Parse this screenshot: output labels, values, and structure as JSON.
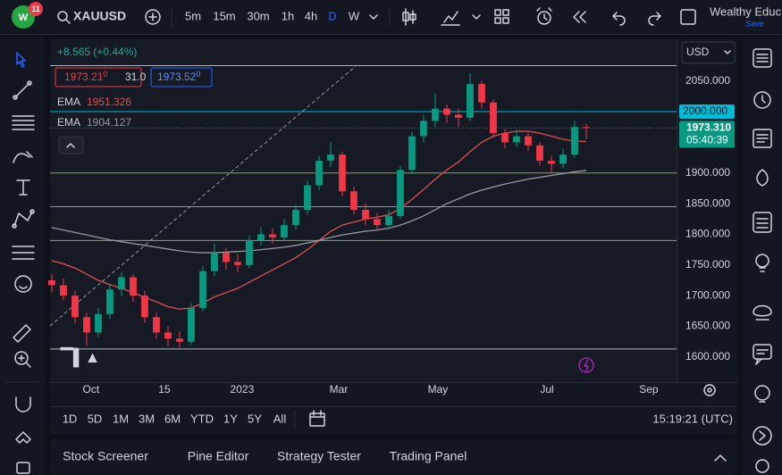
{
  "top_bar": {
    "notifications": "11",
    "symbol": "XAUUSD",
    "intervals": [
      "5m",
      "15m",
      "30m",
      "1h",
      "4h",
      "D",
      "W"
    ],
    "account": "Wealthy Educ",
    "save": "Save"
  },
  "legend": {
    "change": "+8.565 (+0.44%)",
    "bid": "1973.21",
    "bid_sup": "0",
    "spread": "31.0",
    "ask": "1973.52",
    "ask_sup": "0"
  },
  "currency": "USD",
  "chart_data": {
    "type": "candlestick",
    "up_color": "#089981",
    "down_color": "#f23645",
    "ylim": [
      1559,
      2118
    ],
    "yticks": [
      {
        "value": 2050,
        "label": "2050.000"
      },
      {
        "value": 2000,
        "label": "2000.000"
      },
      {
        "value": 1950,
        "label": "1950.000"
      },
      {
        "value": 1900,
        "label": "1900.000"
      },
      {
        "value": 1850,
        "label": "1850.000"
      },
      {
        "value": 1800,
        "label": "1800.000"
      },
      {
        "value": 1750,
        "label": "1750.000"
      },
      {
        "value": 1700,
        "label": "1700.000"
      },
      {
        "value": 1650,
        "label": "1650.000"
      },
      {
        "value": 1600,
        "label": "1600.000"
      }
    ],
    "xlim": [
      -0.15,
      53.77
    ],
    "xticks": [
      {
        "value": 3.38,
        "label": "Oct"
      },
      {
        "value": 9.69,
        "label": "15"
      },
      {
        "value": 16.38,
        "label": "2023"
      },
      {
        "value": 24.69,
        "label": "Mar"
      },
      {
        "value": 33.23,
        "label": "May"
      },
      {
        "value": 42.62,
        "label": "Jul"
      },
      {
        "value": 51.38,
        "label": "Sep"
      }
    ],
    "grid": true,
    "ohlc": [
      [
        1725,
        1735,
        1705,
        1717
      ],
      [
        1717,
        1728,
        1692,
        1700
      ],
      [
        1700,
        1708,
        1655,
        1665
      ],
      [
        1665,
        1672,
        1618,
        1640
      ],
      [
        1640,
        1680,
        1632,
        1670
      ],
      [
        1670,
        1718,
        1662,
        1710
      ],
      [
        1710,
        1738,
        1700,
        1730
      ],
      [
        1730,
        1735,
        1690,
        1700
      ],
      [
        1700,
        1708,
        1655,
        1665
      ],
      [
        1665,
        1672,
        1630,
        1640
      ],
      [
        1640,
        1650,
        1618,
        1630
      ],
      [
        1630,
        1642,
        1615,
        1625
      ],
      [
        1625,
        1688,
        1620,
        1680
      ],
      [
        1680,
        1748,
        1675,
        1740
      ],
      [
        1740,
        1785,
        1732,
        1770
      ],
      [
        1770,
        1778,
        1742,
        1755
      ],
      [
        1755,
        1768,
        1738,
        1750
      ],
      [
        1750,
        1798,
        1745,
        1790
      ],
      [
        1790,
        1812,
        1782,
        1800
      ],
      [
        1800,
        1810,
        1785,
        1795
      ],
      [
        1795,
        1825,
        1790,
        1815
      ],
      [
        1815,
        1848,
        1808,
        1840
      ],
      [
        1840,
        1888,
        1832,
        1880
      ],
      [
        1880,
        1928,
        1872,
        1920
      ],
      [
        1920,
        1950,
        1910,
        1930
      ],
      [
        1930,
        1935,
        1862,
        1870
      ],
      [
        1870,
        1878,
        1832,
        1840
      ],
      [
        1840,
        1850,
        1815,
        1825
      ],
      [
        1825,
        1835,
        1808,
        1815
      ],
      [
        1815,
        1840,
        1808,
        1830
      ],
      [
        1830,
        1912,
        1825,
        1905
      ],
      [
        1905,
        1968,
        1898,
        1960
      ],
      [
        1960,
        1995,
        1950,
        1985
      ],
      [
        1985,
        2030,
        1975,
        2005
      ],
      [
        2005,
        2012,
        1982,
        1995
      ],
      [
        1995,
        2005,
        1975,
        1990
      ],
      [
        1990,
        2063,
        1985,
        2045
      ],
      [
        2045,
        2050,
        2005,
        2015
      ],
      [
        2015,
        2020,
        1958,
        1965
      ],
      [
        1965,
        1972,
        1940,
        1950
      ],
      [
        1950,
        1970,
        1942,
        1960
      ],
      [
        1960,
        1966,
        1936,
        1945
      ],
      [
        1945,
        1950,
        1912,
        1920
      ],
      [
        1920,
        1928,
        1900,
        1915
      ],
      [
        1915,
        1940,
        1908,
        1930
      ],
      [
        1930,
        1985,
        1925,
        1975
      ],
      [
        1975,
        1980,
        1955,
        1973.31
      ]
    ],
    "series": [
      {
        "name": "EMA",
        "legend_value": "1951.326",
        "color": "#e04f4f",
        "values": [
          1757,
          1752,
          1745,
          1735,
          1725,
          1718,
          1712,
          1705,
          1697,
          1690,
          1682,
          1678,
          1680,
          1688,
          1698,
          1705,
          1712,
          1722,
          1732,
          1742,
          1752,
          1762,
          1775,
          1790,
          1805,
          1815,
          1820,
          1825,
          1828,
          1832,
          1842,
          1857,
          1873,
          1890,
          1905,
          1918,
          1935,
          1950,
          1960,
          1965,
          1968,
          1968,
          1965,
          1960,
          1955,
          1952,
          1951.326
        ]
      },
      {
        "name": "EMA",
        "legend_value": "1904.127",
        "color": "#9598a1",
        "values": [
          1811,
          1807,
          1803,
          1799,
          1795,
          1791,
          1788,
          1785,
          1782,
          1779,
          1776,
          1773,
          1771,
          1770,
          1770,
          1771,
          1772,
          1773,
          1775,
          1777,
          1779,
          1782,
          1786,
          1790,
          1795,
          1799,
          1802,
          1805,
          1807,
          1810,
          1815,
          1822,
          1830,
          1840,
          1850,
          1858,
          1866,
          1872,
          1877,
          1882,
          1886,
          1890,
          1893,
          1896,
          1899,
          1902,
          1904.127
        ]
      }
    ],
    "levels": [
      {
        "value": 2075,
        "color": "#b2b5be"
      },
      {
        "value": 2000,
        "color": "#00bcd4"
      },
      {
        "value": 1900,
        "color": "#7cb342"
      },
      {
        "value": 1845,
        "color": "#7cb342"
      },
      {
        "value": 1790,
        "color": "#7cb342"
      },
      {
        "value": 1613,
        "color": "#b2b5be"
      }
    ],
    "marked_price": {
      "value": 2000,
      "label": "2000.000",
      "color": "#00bcd4"
    },
    "last_price": {
      "value": 1973.31,
      "label": "1973.310",
      "countdown": "05:40:39",
      "color": "#089981"
    }
  },
  "bottom_bar": {
    "ranges": [
      "1D",
      "5D",
      "1M",
      "3M",
      "6M",
      "YTD",
      "1Y",
      "5Y",
      "All"
    ],
    "clock": "15:19:21 (UTC)"
  },
  "panel_tabs": [
    "Stock Screener",
    "Pine Editor",
    "Strategy Tester",
    "Trading Panel"
  ]
}
